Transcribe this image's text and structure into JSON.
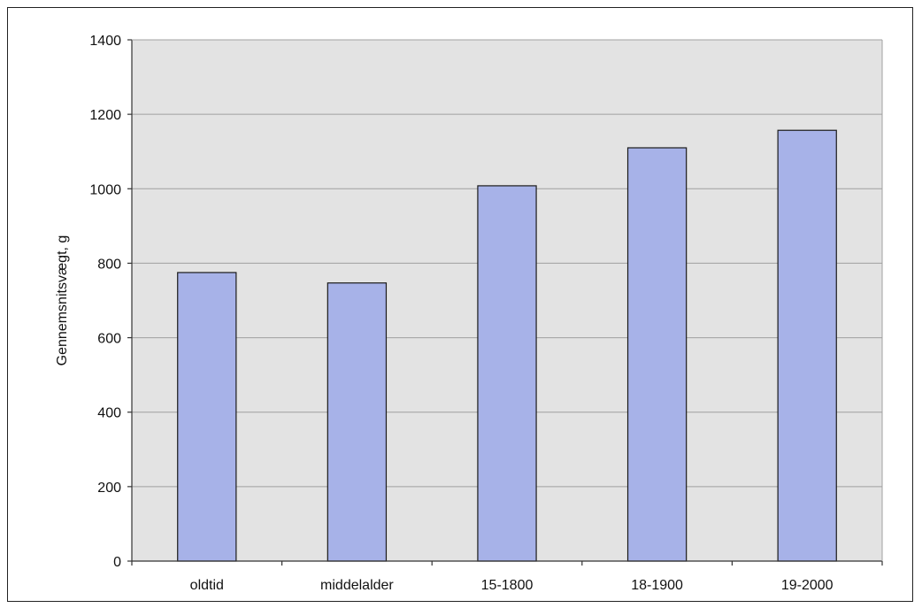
{
  "chart_data": {
    "type": "bar",
    "categories": [
      "oldtid",
      "middelalder",
      "15-1800",
      "18-1900",
      "19-2000"
    ],
    "values": [
      775,
      747,
      1008,
      1110,
      1157
    ],
    "ylabel": "Gennemsnitsvægt, g",
    "xlabel": "",
    "ylim": [
      0,
      1400
    ],
    "yticks": [
      0,
      200,
      400,
      600,
      800,
      1000,
      1200,
      1400
    ],
    "grid": true,
    "legend": "none",
    "colors": {
      "bar_fill": "#a7b2e8",
      "bar_stroke": "#1a1a1a",
      "plot_background": "#e3e3e3",
      "gridline": "#a0a0a0"
    }
  }
}
